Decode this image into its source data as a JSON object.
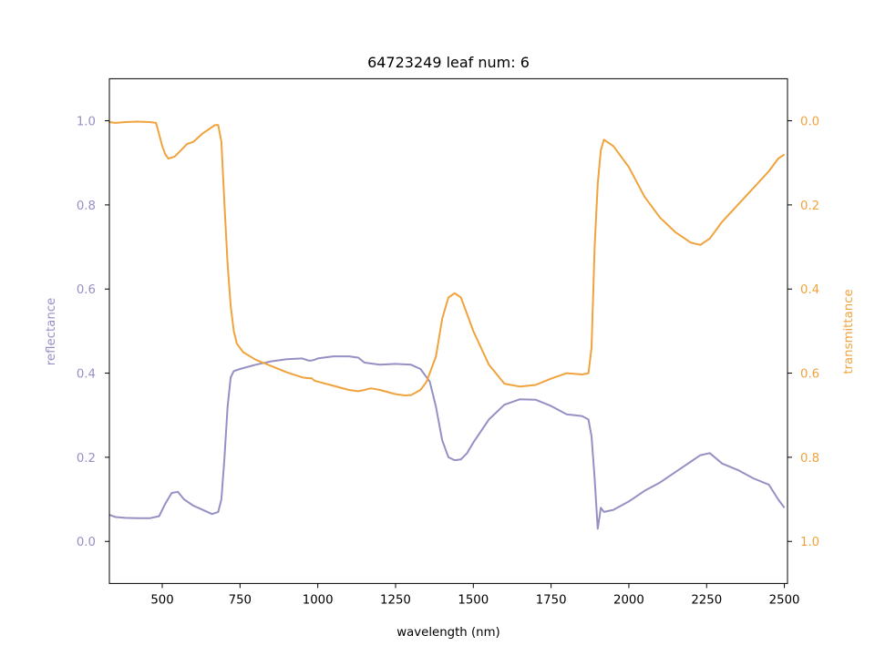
{
  "chart_data": {
    "type": "line",
    "title": "64723249 leaf num: 6",
    "xlabel": "wavelength (nm)",
    "ylabel_left": "reflectance",
    "ylabel_right": "transmittance",
    "xlim": [
      330,
      2510
    ],
    "ylim_left": [
      -0.1,
      1.1
    ],
    "ylim_right": [
      1.1,
      -0.1
    ],
    "right_axis_inverted": true,
    "xticks": [
      500,
      750,
      1000,
      1250,
      1500,
      1750,
      2000,
      2250,
      2500
    ],
    "yticks_left": [
      0.0,
      0.2,
      0.4,
      0.6,
      0.8,
      1.0
    ],
    "yticks_right": [
      0.0,
      0.2,
      0.4,
      0.6,
      0.8,
      1.0
    ],
    "grid": false,
    "colors": {
      "reflectance": "#9590c4",
      "transmittance": "#f0a33c",
      "axes": "#000000"
    },
    "series": [
      {
        "axis": "left",
        "x": [
          330,
          350,
          380,
          420,
          460,
          490,
          510,
          530,
          550,
          570,
          600,
          630,
          660,
          680,
          690,
          700,
          710,
          720,
          730,
          750,
          800,
          850,
          900,
          950,
          970,
          980,
          990,
          1000,
          1050,
          1100,
          1130,
          1150,
          1200,
          1250,
          1300,
          1330,
          1360,
          1380,
          1400,
          1420,
          1440,
          1460,
          1480,
          1500,
          1550,
          1600,
          1650,
          1700,
          1750,
          1800,
          1850,
          1870,
          1880,
          1890,
          1900,
          1910,
          1920,
          1950,
          2000,
          2050,
          2100,
          2150,
          2200,
          2230,
          2260,
          2300,
          2350,
          2400,
          2450,
          2480,
          2500
        ],
        "y": [
          0.063,
          0.058,
          0.056,
          0.055,
          0.055,
          0.06,
          0.09,
          0.115,
          0.118,
          0.1,
          0.085,
          0.075,
          0.065,
          0.07,
          0.1,
          0.2,
          0.32,
          0.39,
          0.405,
          0.41,
          0.42,
          0.428,
          0.433,
          0.435,
          0.43,
          0.43,
          0.432,
          0.435,
          0.44,
          0.44,
          0.437,
          0.425,
          0.42,
          0.422,
          0.42,
          0.41,
          0.38,
          0.32,
          0.24,
          0.2,
          0.193,
          0.195,
          0.21,
          0.235,
          0.29,
          0.325,
          0.338,
          0.337,
          0.322,
          0.302,
          0.298,
          0.29,
          0.25,
          0.15,
          0.03,
          0.08,
          0.07,
          0.075,
          0.095,
          0.12,
          0.14,
          0.165,
          0.19,
          0.205,
          0.21,
          0.185,
          0.17,
          0.15,
          0.135,
          0.1,
          0.08
        ]
      },
      {
        "axis": "right",
        "x": [
          330,
          350,
          380,
          420,
          460,
          480,
          500,
          510,
          520,
          540,
          560,
          580,
          600,
          630,
          660,
          670,
          680,
          690,
          700,
          710,
          720,
          730,
          740,
          760,
          800,
          850,
          900,
          950,
          970,
          980,
          990,
          1000,
          1050,
          1100,
          1130,
          1150,
          1170,
          1200,
          1250,
          1280,
          1300,
          1330,
          1350,
          1380,
          1400,
          1420,
          1440,
          1460,
          1480,
          1500,
          1550,
          1600,
          1650,
          1700,
          1750,
          1800,
          1850,
          1870,
          1880,
          1890,
          1900,
          1910,
          1920,
          1950,
          2000,
          2050,
          2100,
          2150,
          2200,
          2230,
          2260,
          2300,
          2350,
          2400,
          2450,
          2480,
          2500
        ],
        "y": [
          0.003,
          0.005,
          0.003,
          0.002,
          0.003,
          0.005,
          0.06,
          0.08,
          0.09,
          0.085,
          0.07,
          0.055,
          0.05,
          0.03,
          0.015,
          0.01,
          0.01,
          0.05,
          0.2,
          0.34,
          0.44,
          0.5,
          0.53,
          0.55,
          0.568,
          0.583,
          0.598,
          0.61,
          0.612,
          0.612,
          0.618,
          0.62,
          0.63,
          0.64,
          0.643,
          0.64,
          0.636,
          0.64,
          0.65,
          0.653,
          0.652,
          0.64,
          0.62,
          0.56,
          0.47,
          0.42,
          0.41,
          0.42,
          0.46,
          0.5,
          0.58,
          0.625,
          0.632,
          0.628,
          0.613,
          0.6,
          0.603,
          0.6,
          0.54,
          0.3,
          0.15,
          0.07,
          0.045,
          0.06,
          0.11,
          0.18,
          0.23,
          0.265,
          0.29,
          0.295,
          0.28,
          0.24,
          0.2,
          0.16,
          0.12,
          0.09,
          0.08
        ]
      }
    ]
  }
}
